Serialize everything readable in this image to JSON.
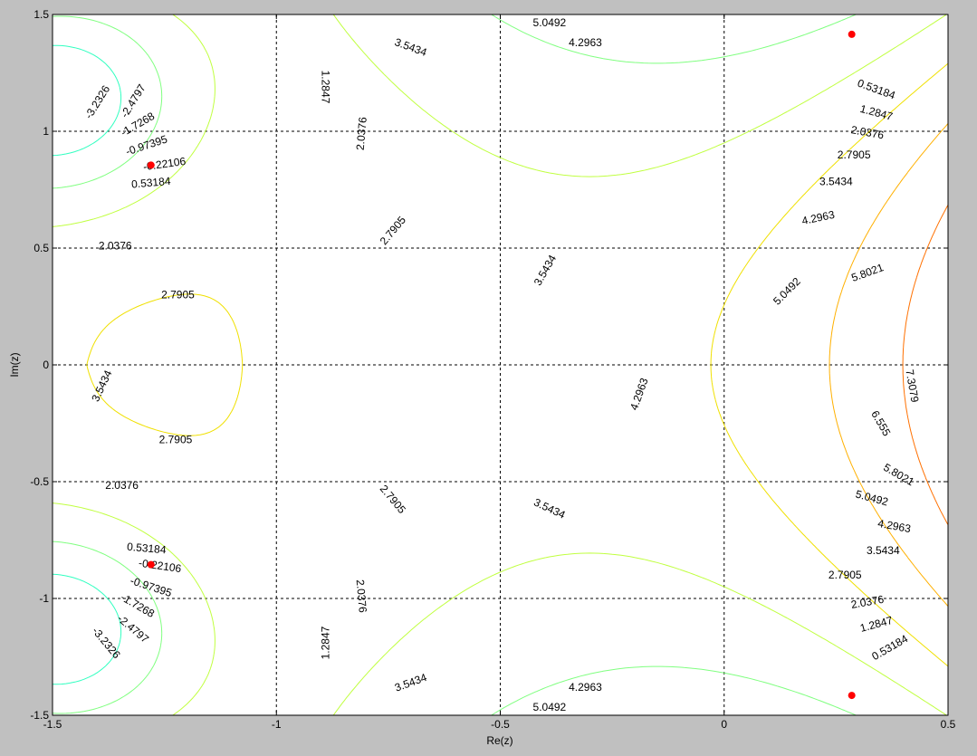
{
  "chart_data": {
    "type": "contour",
    "xlabel": "Re(z)",
    "ylabel": "Im(z)",
    "xlim": [
      -1.5,
      0.5
    ],
    "ylim": [
      -1.5,
      1.5
    ],
    "x_ticks": [
      -1.5,
      -1,
      -0.5,
      0,
      0.5
    ],
    "y_ticks": [
      -1.5,
      -1,
      -0.5,
      0,
      0.5,
      1,
      1.5
    ],
    "x_tick_labels": [
      "-1.5",
      "-1",
      "-0.5",
      "0",
      "0.5"
    ],
    "y_tick_labels": [
      "-1.5",
      "-1",
      "-0.5",
      "0",
      "0.5",
      "1",
      "1.5"
    ],
    "grid": true,
    "grid_style": "dashed",
    "levels": [
      -3.2326,
      -2.4797,
      -1.7268,
      -0.97395,
      -0.22106,
      0.53184,
      1.2847,
      2.0376,
      2.7905,
      3.5434,
      4.2963,
      5.0492,
      5.8021,
      6.555,
      7.3079
    ],
    "level_colors": [
      "#00008f",
      "#0000ff",
      "#0060ff",
      "#00b0ff",
      "#00e8e8",
      "#30ffc0",
      "#80ff80",
      "#c0ff40",
      "#f0e000",
      "#ffb000",
      "#ff7000",
      "#e04000",
      "#c02000",
      "#a00000",
      "#800000"
    ],
    "contour_labels": [
      {
        "text": "-3.2326",
        "x": -1.4,
        "y": 1.125,
        "angle": -58
      },
      {
        "text": "-2.4797",
        "x": -1.32,
        "y": 1.13,
        "angle": -58
      },
      {
        "text": "-1.7268",
        "x": -1.31,
        "y": 1.03,
        "angle": -30
      },
      {
        "text": "-0.97395",
        "x": -1.29,
        "y": 0.94,
        "angle": -18
      },
      {
        "text": "-0.22106",
        "x": -1.25,
        "y": 0.86,
        "angle": -8
      },
      {
        "text": "0.53184",
        "x": -1.28,
        "y": 0.78,
        "angle": -5
      },
      {
        "text": "2.0376",
        "x": -1.36,
        "y": 0.51,
        "angle": 0
      },
      {
        "text": "2.7905",
        "x": -1.22,
        "y": 0.3,
        "angle": 0
      },
      {
        "text": "3.5434",
        "x": -1.39,
        "y": -0.09,
        "angle": -65
      },
      {
        "text": "2.7905",
        "x": -1.225,
        "y": -0.32,
        "angle": 0
      },
      {
        "text": "2.0376",
        "x": -1.345,
        "y": -0.515,
        "angle": 0
      },
      {
        "text": "0.53184",
        "x": -1.29,
        "y": -0.785,
        "angle": 5
      },
      {
        "text": "-0.22106",
        "x": -1.26,
        "y": -0.86,
        "angle": 8
      },
      {
        "text": "-0.97395",
        "x": -1.28,
        "y": -0.95,
        "angle": 18
      },
      {
        "text": "-1.7268",
        "x": -1.31,
        "y": -1.03,
        "angle": 30
      },
      {
        "text": "-2.4797",
        "x": -1.32,
        "y": -1.13,
        "angle": 40
      },
      {
        "text": "-3.2326",
        "x": -1.38,
        "y": -1.19,
        "angle": 50
      },
      {
        "text": "1.2847",
        "x": -0.89,
        "y": 1.19,
        "angle": 90
      },
      {
        "text": "2.0376",
        "x": -0.81,
        "y": 0.99,
        "angle": -85
      },
      {
        "text": "2.7905",
        "x": -0.74,
        "y": 0.575,
        "angle": -50
      },
      {
        "text": "2.7905",
        "x": -0.74,
        "y": -0.575,
        "angle": 50
      },
      {
        "text": "2.0376",
        "x": -0.81,
        "y": -0.99,
        "angle": 85
      },
      {
        "text": "1.2847",
        "x": -0.89,
        "y": -1.19,
        "angle": -90
      },
      {
        "text": "3.5434",
        "x": -0.7,
        "y": 1.36,
        "angle": 20
      },
      {
        "text": "5.0492",
        "x": -0.39,
        "y": 1.465,
        "angle": 0
      },
      {
        "text": "4.2963",
        "x": -0.31,
        "y": 1.38,
        "angle": 0
      },
      {
        "text": "3.5434",
        "x": -0.7,
        "y": -1.36,
        "angle": -20
      },
      {
        "text": "4.2963",
        "x": -0.31,
        "y": -1.38,
        "angle": 0
      },
      {
        "text": "5.0492",
        "x": -0.39,
        "y": -1.465,
        "angle": 0
      },
      {
        "text": "3.5434",
        "x": -0.4,
        "y": 0.405,
        "angle": -60
      },
      {
        "text": "4.2963",
        "x": -0.19,
        "y": -0.125,
        "angle": -70
      },
      {
        "text": "3.5434",
        "x": -0.39,
        "y": -0.615,
        "angle": 25
      },
      {
        "text": "0.53184",
        "x": 0.34,
        "y": 1.18,
        "angle": 20
      },
      {
        "text": "1.2847",
        "x": 0.34,
        "y": 1.08,
        "angle": 15
      },
      {
        "text": "2.0376",
        "x": 0.32,
        "y": 0.995,
        "angle": 10
      },
      {
        "text": "2.7905",
        "x": 0.29,
        "y": 0.9,
        "angle": 0
      },
      {
        "text": "3.5434",
        "x": 0.25,
        "y": 0.785,
        "angle": 0
      },
      {
        "text": "4.2963",
        "x": 0.21,
        "y": 0.63,
        "angle": -12
      },
      {
        "text": "5.0492",
        "x": 0.14,
        "y": 0.315,
        "angle": -45
      },
      {
        "text": "5.8021",
        "x": 0.32,
        "y": 0.395,
        "angle": -20
      },
      {
        "text": "7.3079",
        "x": 0.42,
        "y": -0.09,
        "angle": 80
      },
      {
        "text": "6.555",
        "x": 0.35,
        "y": -0.25,
        "angle": 60
      },
      {
        "text": "5.8021",
        "x": 0.39,
        "y": -0.47,
        "angle": 30
      },
      {
        "text": "5.0492",
        "x": 0.33,
        "y": -0.57,
        "angle": 15
      },
      {
        "text": "4.2963",
        "x": 0.38,
        "y": -0.69,
        "angle": 10
      },
      {
        "text": "3.5434",
        "x": 0.355,
        "y": -0.795,
        "angle": 0
      },
      {
        "text": "2.7905",
        "x": 0.27,
        "y": -0.9,
        "angle": 0
      },
      {
        "text": "2.0376",
        "x": 0.32,
        "y": -1.015,
        "angle": -10
      },
      {
        "text": "1.2847",
        "x": 0.34,
        "y": -1.11,
        "angle": -15
      },
      {
        "text": "0.53184",
        "x": 0.37,
        "y": -1.21,
        "angle": -30
      }
    ],
    "markers": [
      {
        "x": -1.28,
        "y": 0.855
      },
      {
        "x": -1.28,
        "y": -0.855
      },
      {
        "x": 0.285,
        "y": 1.415
      },
      {
        "x": 0.285,
        "y": -1.415
      }
    ]
  }
}
